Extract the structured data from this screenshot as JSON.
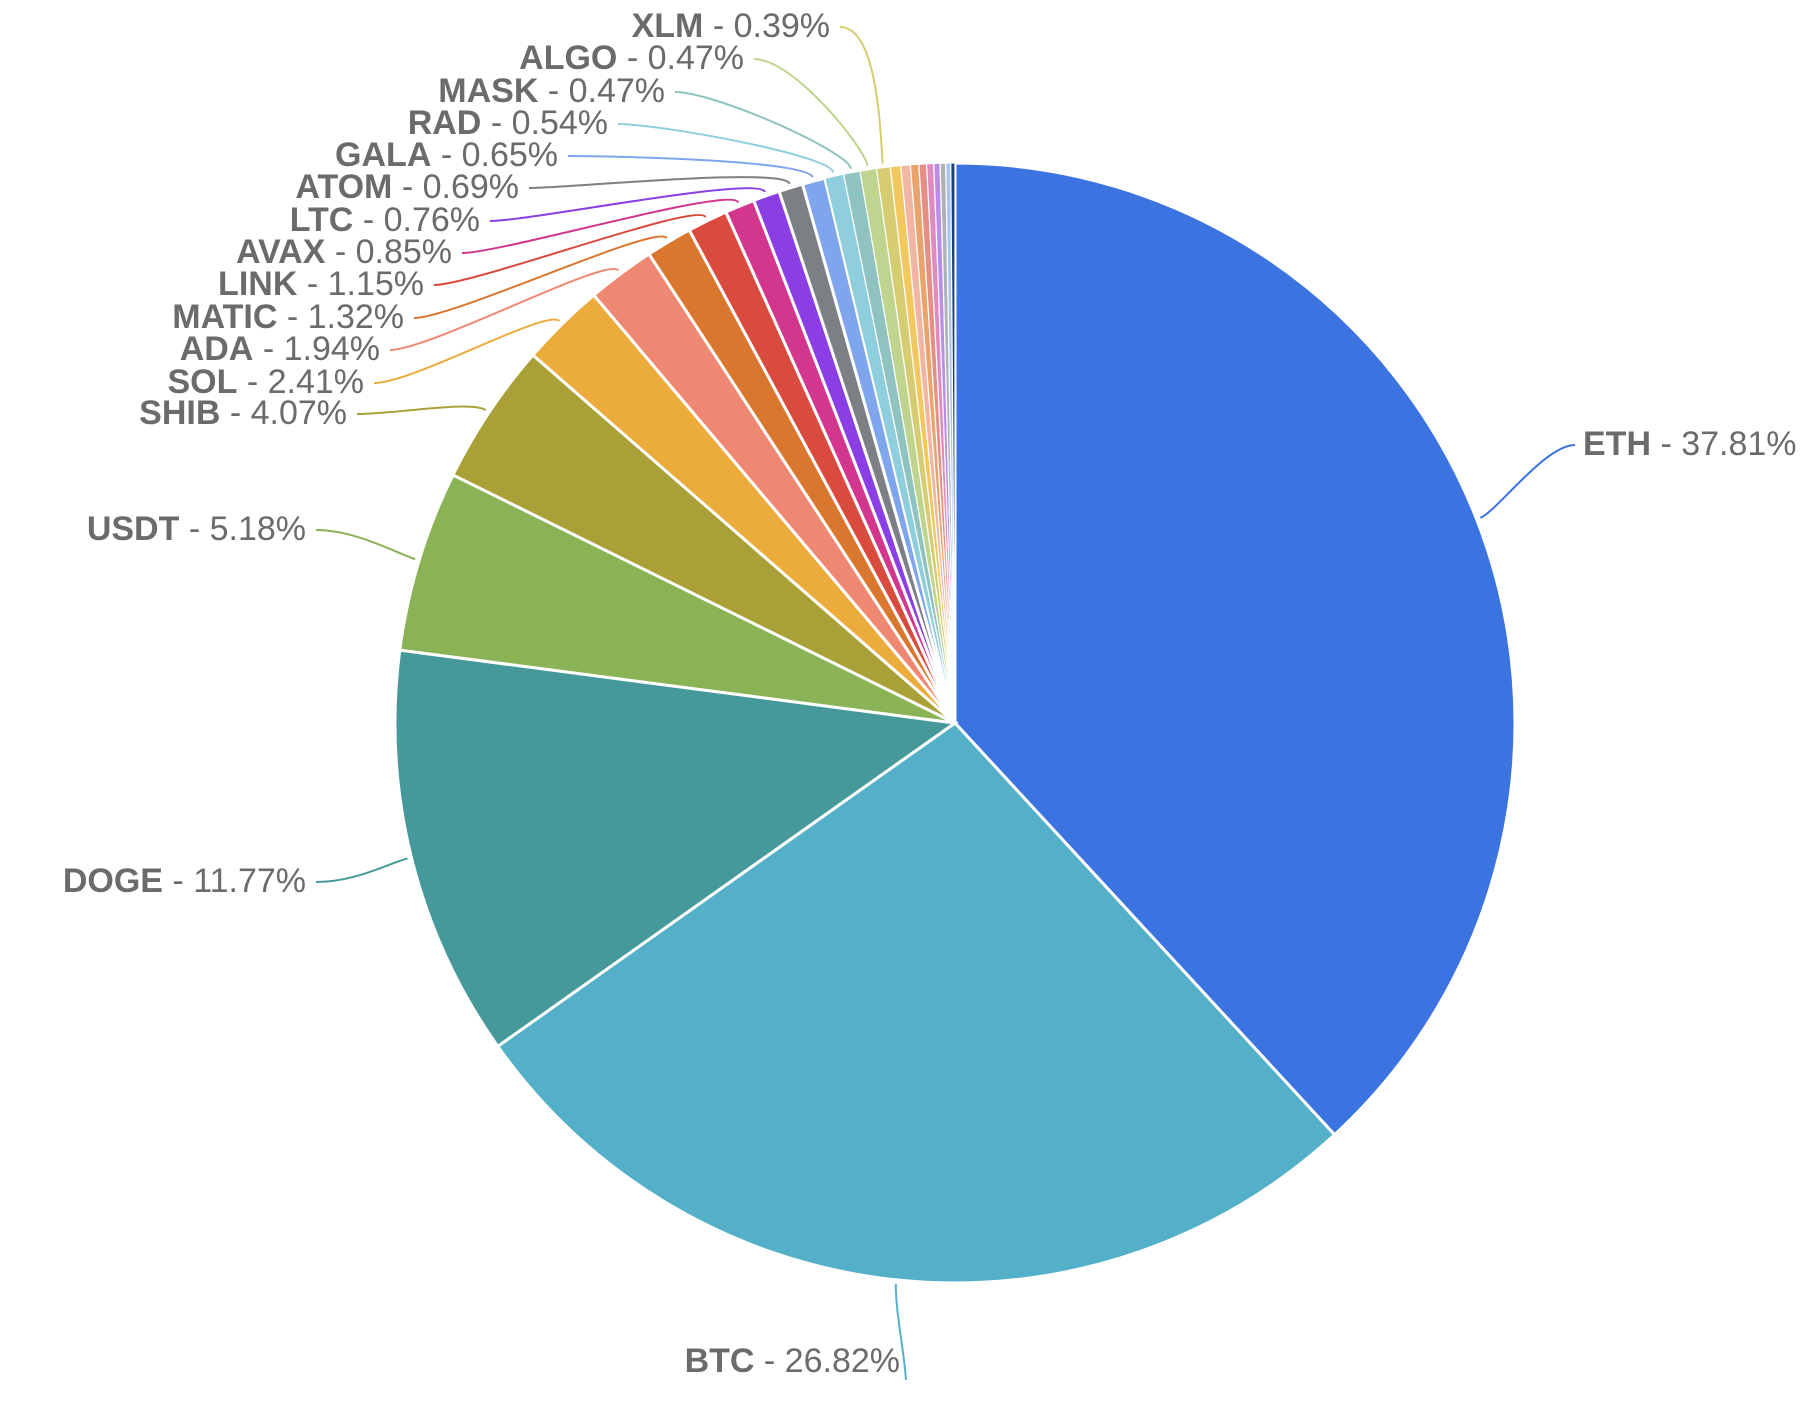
{
  "chart_data": {
    "type": "pie",
    "title": "",
    "slices": [
      {
        "label": "ETH",
        "value": 37.81,
        "text": "37.81%",
        "color": "#3b74e0",
        "labeled": true
      },
      {
        "label": "BTC",
        "value": 26.82,
        "text": "26.82%",
        "color": "#54b0c9",
        "labeled": true
      },
      {
        "label": "DOGE",
        "value": 11.77,
        "text": "11.77%",
        "color": "#46999b",
        "labeled": true
      },
      {
        "label": "USDT",
        "value": 5.18,
        "text": "5.18%",
        "color": "#8ab356",
        "labeled": true
      },
      {
        "label": "SHIB",
        "value": 4.07,
        "text": "4.07%",
        "color": "#a9a137",
        "labeled": true
      },
      {
        "label": "SOL",
        "value": 2.41,
        "text": "2.41%",
        "color": "#ebac3c",
        "labeled": true
      },
      {
        "label": "ADA",
        "value": 1.94,
        "text": "1.94%",
        "color": "#ef8872",
        "labeled": true
      },
      {
        "label": "MATIC",
        "value": 1.32,
        "text": "1.32%",
        "color": "#d9772f",
        "labeled": true
      },
      {
        "label": "LINK",
        "value": 1.15,
        "text": "1.15%",
        "color": "#d94b3e",
        "labeled": true
      },
      {
        "label": "AVAX",
        "value": 0.85,
        "text": "0.85%",
        "color": "#d2368d",
        "labeled": true
      },
      {
        "label": "LTC",
        "value": 0.76,
        "text": "0.76%",
        "color": "#8a3ee3",
        "labeled": true
      },
      {
        "label": "ATOM",
        "value": 0.69,
        "text": "0.69%",
        "color": "#7c7f84",
        "labeled": true
      },
      {
        "label": "GALA",
        "value": 0.65,
        "text": "0.65%",
        "color": "#7fa6ec",
        "labeled": true
      },
      {
        "label": "RAD",
        "value": 0.54,
        "text": "0.54%",
        "color": "#8fcfdd",
        "labeled": true
      },
      {
        "label": "MASK",
        "value": 0.47,
        "text": "0.47%",
        "color": "#8fc3c0",
        "labeled": true
      },
      {
        "label": "ALGO",
        "value": 0.47,
        "text": "0.47%",
        "color": "#bfd48e",
        "labeled": true
      },
      {
        "label": "XLM",
        "value": 0.39,
        "text": "0.39%",
        "color": "#d6cd72",
        "labeled": true
      },
      {
        "label": "",
        "value": 0.3,
        "text": "",
        "color": "#f2c85e",
        "labeled": false
      },
      {
        "label": "",
        "value": 0.27,
        "text": "",
        "color": "#f3b5a3",
        "labeled": false
      },
      {
        "label": "",
        "value": 0.24,
        "text": "",
        "color": "#e9a46d",
        "labeled": false
      },
      {
        "label": "",
        "value": 0.22,
        "text": "",
        "color": "#e58f84",
        "labeled": false
      },
      {
        "label": "",
        "value": 0.2,
        "text": "",
        "color": "#e08ac0",
        "labeled": false
      },
      {
        "label": "",
        "value": 0.18,
        "text": "",
        "color": "#b98de8",
        "labeled": false
      },
      {
        "label": "",
        "value": 0.16,
        "text": "",
        "color": "#aeb2b8",
        "labeled": false
      },
      {
        "label": "",
        "value": 0.14,
        "text": "",
        "color": "#a9c2f0",
        "labeled": false
      },
      {
        "label": "",
        "value": 0.12,
        "text": "",
        "color": "#1f3d7a",
        "labeled": false
      }
    ],
    "legend": "none",
    "label_format": "{label} - {percent}"
  }
}
